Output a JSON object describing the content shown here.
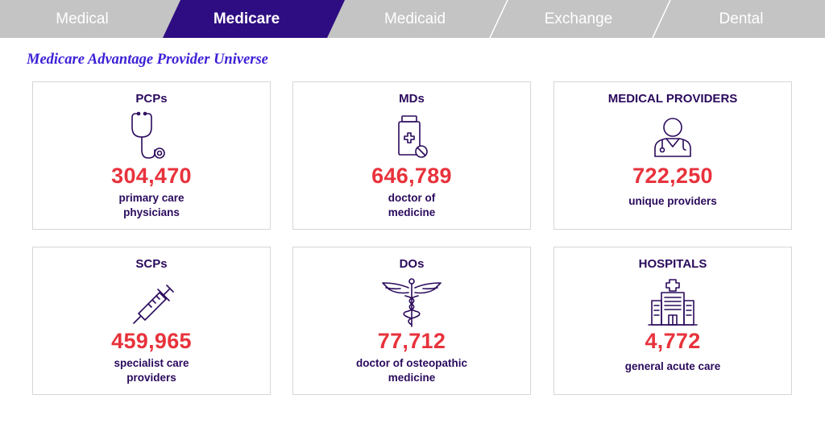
{
  "tabs": [
    {
      "label": "Medical",
      "active": false
    },
    {
      "label": "Medicare",
      "active": true
    },
    {
      "label": "Medicaid",
      "active": false
    },
    {
      "label": "Exchange",
      "active": false
    },
    {
      "label": "Dental",
      "active": false
    }
  ],
  "colors": {
    "tab_inactive": "#c4c4c4",
    "tab_active": "#2e0d82",
    "heading": "#3b1fd6",
    "value": "#e8323c",
    "text": "#2a0a5c"
  },
  "heading": "Medicare Advantage Provider Universe",
  "cards": [
    {
      "title": "PCPs",
      "icon": "stethoscope-icon",
      "value": "304,470",
      "desc": [
        "primary care",
        "physicians"
      ]
    },
    {
      "title": "MDs",
      "icon": "medicine-bottle-icon",
      "value": "646,789",
      "desc": [
        "doctor of",
        "medicine"
      ]
    },
    {
      "title": "MEDICAL PROVIDERS",
      "icon": "doctor-icon",
      "value": "722,250",
      "desc": [
        "unique providers"
      ]
    },
    {
      "title": "SCPs",
      "icon": "syringe-icon",
      "value": "459,965",
      "desc": [
        "specialist care",
        "providers"
      ]
    },
    {
      "title": "DOs",
      "icon": "caduceus-icon",
      "value": "77,712",
      "desc": [
        "doctor of osteopathic",
        "medicine"
      ]
    },
    {
      "title": "HOSPITALS",
      "icon": "hospital-icon",
      "value": "4,772",
      "desc": [
        "general acute care"
      ]
    }
  ]
}
